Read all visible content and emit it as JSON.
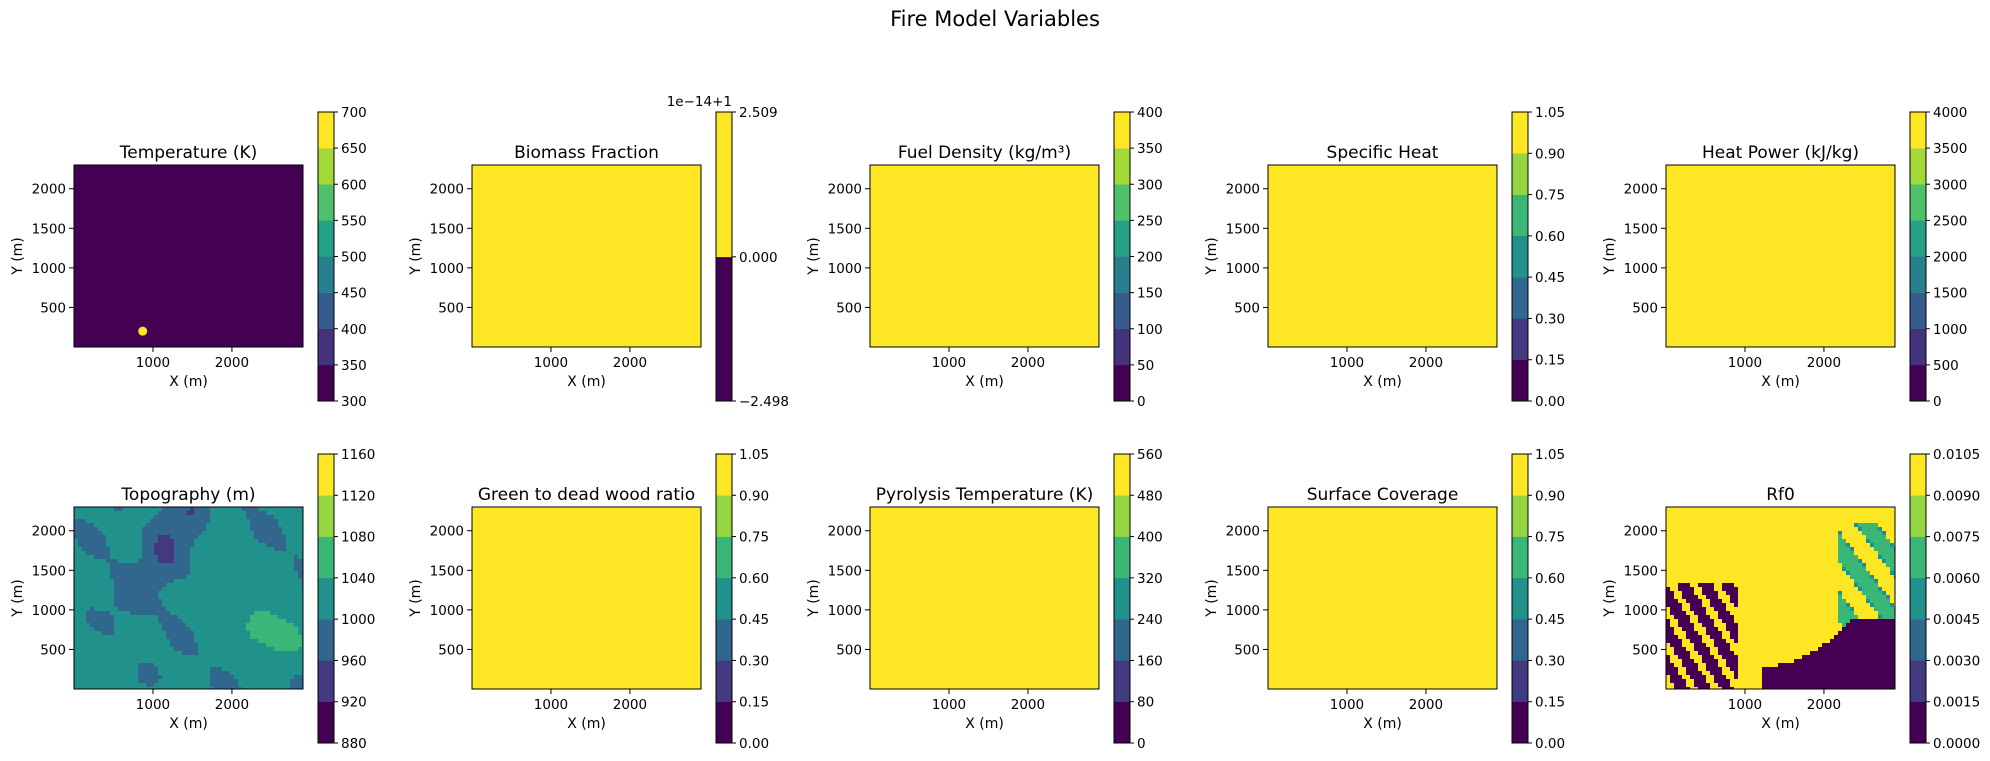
{
  "suptitle": "Fire Model Variables",
  "chart_data": [
    {
      "type": "heatmap",
      "title": "Temperature (K)",
      "xlabel": "X (m)",
      "ylabel": "Y (m)",
      "xticks": [
        1000,
        2000
      ],
      "yticks": [
        500,
        1000,
        1500,
        2000
      ],
      "colorbar": {
        "levels": [
          300,
          350,
          400,
          450,
          500,
          550,
          600,
          650,
          700
        ],
        "ticks": [
          "300",
          "350",
          "400",
          "450",
          "500",
          "550",
          "600",
          "650",
          "700"
        ]
      },
      "field": "uniform",
      "value": 300,
      "hotspot": {
        "x": 870,
        "y": 200,
        "value": 700
      }
    },
    {
      "type": "heatmap",
      "title": "Biomass Fraction",
      "xlabel": "X (m)",
      "ylabel": "Y (m)",
      "xticks": [
        1000,
        2000
      ],
      "yticks": [
        500,
        1000,
        1500,
        2000
      ],
      "colorbar": {
        "levels": [
          -2.498,
          0.0,
          2.509
        ],
        "ticks": [
          "−2.498",
          "0.000",
          "2.509"
        ],
        "offset": "1e−14+1"
      },
      "field": "uniform",
      "value": 0.0
    },
    {
      "type": "heatmap",
      "title": "Fuel Density (kg/m³)",
      "xlabel": "X (m)",
      "ylabel": "Y (m)",
      "xticks": [
        1000,
        2000
      ],
      "yticks": [
        500,
        1000,
        1500,
        2000
      ],
      "colorbar": {
        "levels": [
          0,
          50,
          100,
          150,
          200,
          250,
          300,
          350,
          400
        ],
        "ticks": [
          "0",
          "50",
          "100",
          "150",
          "200",
          "250",
          "300",
          "350",
          "400"
        ]
      },
      "field": "uniform",
      "value": 375
    },
    {
      "type": "heatmap",
      "title": "Specific Heat",
      "xlabel": "X (m)",
      "ylabel": "Y (m)",
      "xticks": [
        1000,
        2000
      ],
      "yticks": [
        500,
        1000,
        1500,
        2000
      ],
      "colorbar": {
        "levels": [
          0.0,
          0.15,
          0.3,
          0.45,
          0.6,
          0.75,
          0.9,
          1.05
        ],
        "ticks": [
          "0.00",
          "0.15",
          "0.30",
          "0.45",
          "0.60",
          "0.75",
          "0.90",
          "1.05"
        ]
      },
      "field": "uniform",
      "value": 1.0
    },
    {
      "type": "heatmap",
      "title": "Heat Power (kJ/kg)",
      "xlabel": "X (m)",
      "ylabel": "Y (m)",
      "xticks": [
        1000,
        2000
      ],
      "yticks": [
        500,
        1000,
        1500,
        2000
      ],
      "colorbar": {
        "levels": [
          0,
          500,
          1000,
          1500,
          2000,
          2500,
          3000,
          3500,
          4000
        ],
        "ticks": [
          "0",
          "500",
          "1000",
          "1500",
          "2000",
          "2500",
          "3000",
          "3500",
          "4000"
        ]
      },
      "field": "uniform",
      "value": 3800
    },
    {
      "type": "heatmap",
      "title": "Topography (m)",
      "xlabel": "X (m)",
      "ylabel": "Y (m)",
      "xticks": [
        1000,
        2000
      ],
      "yticks": [
        500,
        1000,
        1500,
        2000
      ],
      "colorbar": {
        "levels": [
          880,
          920,
          960,
          1000,
          1040,
          1080,
          1120,
          1160
        ],
        "ticks": [
          "880",
          "920",
          "960",
          "1000",
          "1040",
          "1080",
          "1120",
          "1160"
        ]
      },
      "field": "topography",
      "value": 1010
    },
    {
      "type": "heatmap",
      "title": "Green to dead wood ratio",
      "xlabel": "X (m)",
      "ylabel": "Y (m)",
      "xticks": [
        1000,
        2000
      ],
      "yticks": [
        500,
        1000,
        1500,
        2000
      ],
      "colorbar": {
        "levels": [
          0.0,
          0.15,
          0.3,
          0.45,
          0.6,
          0.75,
          0.9,
          1.05
        ],
        "ticks": [
          "0.00",
          "0.15",
          "0.30",
          "0.45",
          "0.60",
          "0.75",
          "0.90",
          "1.05"
        ]
      },
      "field": "uniform",
      "value": 1.0
    },
    {
      "type": "heatmap",
      "title": "Pyrolysis Temperature (K)",
      "xlabel": "X (m)",
      "ylabel": "Y (m)",
      "xticks": [
        1000,
        2000
      ],
      "yticks": [
        500,
        1000,
        1500,
        2000
      ],
      "colorbar": {
        "levels": [
          0,
          80,
          160,
          240,
          320,
          400,
          480,
          560
        ],
        "ticks": [
          "0",
          "80",
          "160",
          "240",
          "320",
          "400",
          "480",
          "560"
        ]
      },
      "field": "uniform",
      "value": 525
    },
    {
      "type": "heatmap",
      "title": "Surface Coverage",
      "xlabel": "X (m)",
      "ylabel": "Y (m)",
      "xticks": [
        1000,
        2000
      ],
      "yticks": [
        500,
        1000,
        1500,
        2000
      ],
      "colorbar": {
        "levels": [
          0.0,
          0.15,
          0.3,
          0.45,
          0.6,
          0.75,
          0.9,
          1.05
        ],
        "ticks": [
          "0.00",
          "0.15",
          "0.30",
          "0.45",
          "0.60",
          "0.75",
          "0.90",
          "1.05"
        ]
      },
      "field": "uniform",
      "value": 1.0
    },
    {
      "type": "heatmap",
      "title": "Rf0",
      "xlabel": "X (m)",
      "ylabel": "Y (m)",
      "xticks": [
        1000,
        2000
      ],
      "yticks": [
        500,
        1000,
        1500,
        2000
      ],
      "colorbar": {
        "levels": [
          0.0,
          0.0015,
          0.003,
          0.0045,
          0.006,
          0.0075,
          0.009,
          0.0105
        ],
        "ticks": [
          "0.0000",
          "0.0015",
          "0.0030",
          "0.0045",
          "0.0060",
          "0.0075",
          "0.0090",
          "0.0105"
        ]
      },
      "field": "rf0",
      "value": 0.0097
    }
  ],
  "colors": {
    "viridis": [
      "#440154",
      "#472d7b",
      "#3b528b",
      "#2c728e",
      "#21918c",
      "#28ae80",
      "#5ec962",
      "#addc30",
      "#fde725"
    ]
  }
}
